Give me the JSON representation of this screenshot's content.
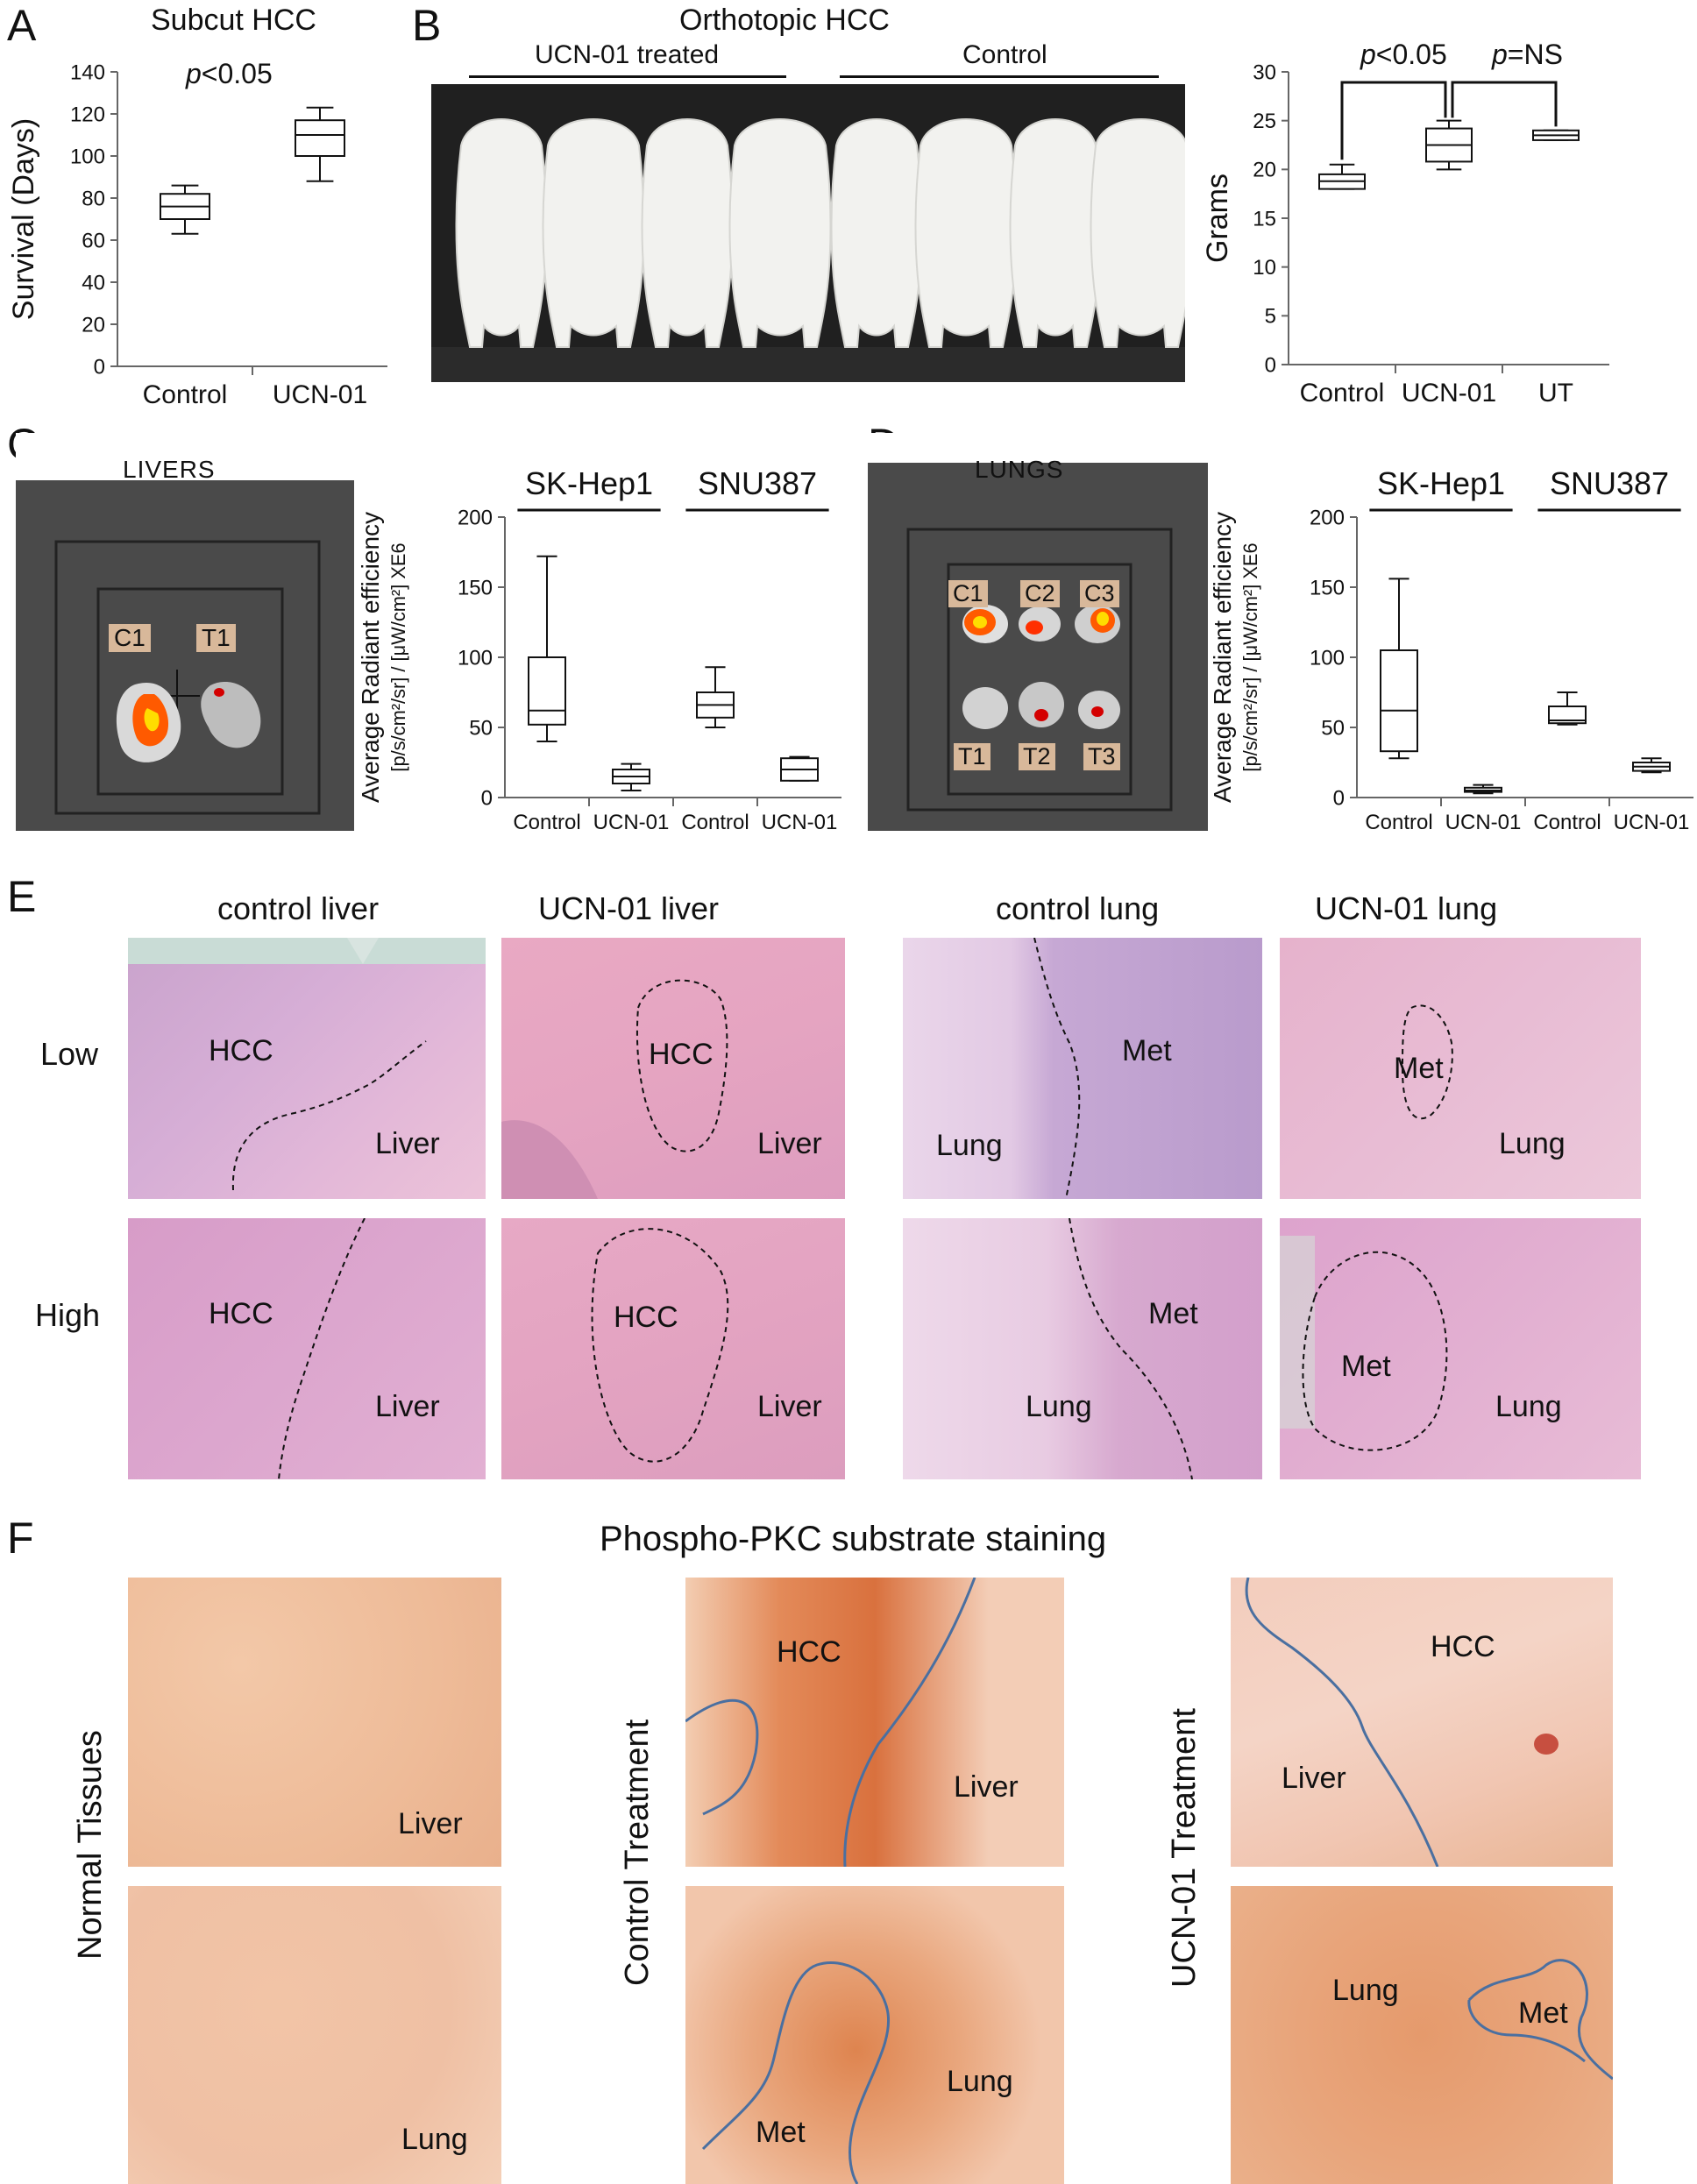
{
  "panels": {
    "A": {
      "letter": "A",
      "title": "Subcut HCC",
      "pvalue_p": "p",
      "pvalue_rest": "<0.05"
    },
    "B": {
      "letter": "B",
      "title": "Orthotopic HCC",
      "group_treated": "UCN-01 treated",
      "group_control": "Control",
      "p1_p": "p",
      "p1_rest": "<0.05",
      "p2_p": "p",
      "p2_rest": "=NS"
    },
    "C": {
      "letter": "C",
      "image_title": "LIVERS",
      "tag_c1": "C1",
      "tag_t1": "T1",
      "group1": "SK-Hep1",
      "group2": "SNU387"
    },
    "D": {
      "letter": "D",
      "image_title": "LUNGS",
      "tags": [
        "C1",
        "C2",
        "C3",
        "T1",
        "T2",
        "T3"
      ],
      "group1": "SK-Hep1",
      "group2": "SNU387"
    },
    "E": {
      "letter": "E",
      "col_headers": [
        "control liver",
        "UCN-01 liver",
        "control lung",
        "UCN-01 lung"
      ],
      "row_low": "Low",
      "row_high": "High",
      "labels": {
        "hcc": "HCC",
        "liver": "Liver",
        "met": "Met",
        "lung": "Lung"
      }
    },
    "F": {
      "letter": "F",
      "title": "Phospho-PKC substrate staining",
      "row_labels": [
        "Normal Tissues",
        "Control Treatment",
        "UCN-01 Treatment"
      ],
      "labels": {
        "liver": "Liver",
        "lung": "Lung",
        "hcc": "HCC",
        "met": "Met"
      }
    }
  },
  "chart_data": [
    {
      "id": "A",
      "type": "box",
      "title": "Subcut HCC",
      "ylabel": "Survival (Days)",
      "ylim": [
        0,
        140
      ],
      "yticks": [
        0,
        20,
        40,
        60,
        80,
        100,
        120,
        140
      ],
      "ytick_labels": [
        "0",
        "20",
        "40",
        "60",
        "80",
        "100",
        "120",
        "140"
      ],
      "categories": [
        "Control",
        "UCN-01"
      ],
      "boxes": [
        {
          "min": 63,
          "q1": 70,
          "median": 76,
          "q3": 82,
          "max": 86
        },
        {
          "min": 88,
          "q1": 100,
          "median": 110,
          "q3": 117,
          "max": 123
        }
      ]
    },
    {
      "id": "B",
      "type": "box",
      "ylabel": "Grams",
      "ylim": [
        0,
        30
      ],
      "yticks": [
        0,
        5,
        10,
        15,
        20,
        25,
        30
      ],
      "ytick_labels": [
        "0",
        "5",
        "10",
        "15",
        "20",
        "25",
        "30"
      ],
      "categories": [
        "Control",
        "UCN-01",
        "UT"
      ],
      "boxes": [
        {
          "min": 18,
          "q1": 18,
          "median": 18.8,
          "q3": 19.5,
          "max": 20.5
        },
        {
          "min": 20,
          "q1": 20.8,
          "median": 22.5,
          "q3": 24.2,
          "max": 25
        },
        {
          "min": 23,
          "q1": 23,
          "median": 23.5,
          "q3": 24,
          "max": 24
        }
      ]
    },
    {
      "id": "C",
      "type": "box",
      "ylabel_line1": "Average Radiant efficiency",
      "ylabel_line2": "[p/s/cm²/sr] / [μW/cm²] XE6",
      "ylim": [
        0,
        200
      ],
      "yticks": [
        0,
        50,
        100,
        150,
        200
      ],
      "ytick_labels": [
        "0",
        "50",
        "100",
        "150",
        "200"
      ],
      "categories": [
        "Control",
        "UCN-01",
        "Control",
        "UCN-01"
      ],
      "groups": [
        "SK-Hep1",
        "SNU387"
      ],
      "boxes": [
        {
          "min": 40,
          "q1": 52,
          "median": 62,
          "q3": 100,
          "max": 172
        },
        {
          "min": 5,
          "q1": 10,
          "median": 15,
          "q3": 20,
          "max": 24
        },
        {
          "min": 50,
          "q1": 57,
          "median": 66,
          "q3": 75,
          "max": 93
        },
        {
          "min": 12,
          "q1": 12,
          "median": 20,
          "q3": 28,
          "max": 29
        }
      ]
    },
    {
      "id": "D",
      "type": "box",
      "ylabel_line1": "Average Radiant efficiency",
      "ylabel_line2": "[p/s/cm²/sr] / [μW/cm²] XE6",
      "ylim": [
        0,
        200
      ],
      "yticks": [
        0,
        50,
        100,
        150,
        200
      ],
      "ytick_labels": [
        "0",
        "50",
        "100",
        "150",
        "200"
      ],
      "categories": [
        "Control",
        "UCN-01",
        "Control",
        "UCN-01"
      ],
      "groups": [
        "SK-Hep1",
        "SNU387"
      ],
      "boxes": [
        {
          "min": 28,
          "q1": 33,
          "median": 62,
          "q3": 105,
          "max": 156
        },
        {
          "min": 3,
          "q1": 4,
          "median": 5,
          "q3": 7,
          "max": 9
        },
        {
          "min": 52,
          "q1": 53,
          "median": 55,
          "q3": 65,
          "max": 75
        },
        {
          "min": 18,
          "q1": 19,
          "median": 22,
          "q3": 25,
          "max": 28
        }
      ]
    }
  ]
}
